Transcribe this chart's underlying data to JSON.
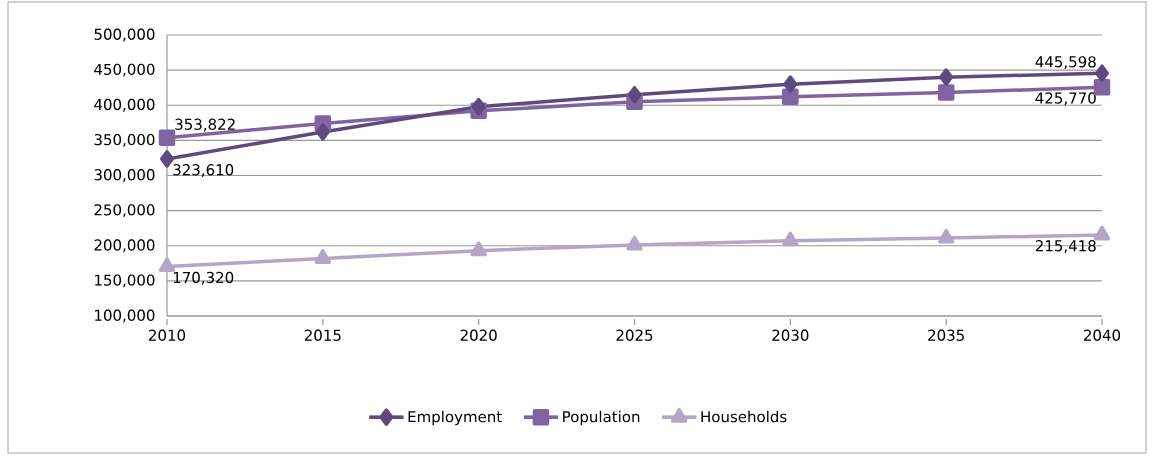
{
  "chart_data": {
    "type": "line",
    "categories": [
      "2010",
      "2015",
      "2020",
      "2025",
      "2030",
      "2035",
      "2040"
    ],
    "series": [
      {
        "name": "Employment",
        "color": "#5f4a80",
        "marker": "diamond",
        "values": [
          323610,
          362000,
          398000,
          415000,
          430000,
          440000,
          445598
        ],
        "value_labels": [
          "323,610",
          null,
          null,
          null,
          null,
          null,
          "445,598"
        ]
      },
      {
        "name": "Population",
        "color": "#8064a2",
        "marker": "square",
        "values": [
          353822,
          374000,
          392000,
          405000,
          412000,
          418000,
          425770
        ],
        "value_labels": [
          "353,822",
          null,
          null,
          null,
          null,
          null,
          "425,770"
        ]
      },
      {
        "name": "Households",
        "color": "#b3a6c8",
        "marker": "triangle",
        "values": [
          170320,
          182000,
          193000,
          201000,
          207000,
          211000,
          215418
        ],
        "value_labels": [
          "170,320",
          null,
          null,
          null,
          null,
          null,
          "215,418"
        ]
      }
    ],
    "ylim": [
      100000,
      500000
    ],
    "yticks": [
      {
        "value": 100000,
        "label": "100,000"
      },
      {
        "value": 150000,
        "label": "150,000"
      },
      {
        "value": 200000,
        "label": "200,000"
      },
      {
        "value": 250000,
        "label": "250,000"
      },
      {
        "value": 300000,
        "label": "300,000"
      },
      {
        "value": 350000,
        "label": "350,000"
      },
      {
        "value": 400000,
        "label": "400,000"
      },
      {
        "value": 450000,
        "label": "450,000"
      },
      {
        "value": 500000,
        "label": "500,000"
      }
    ],
    "grid": "y",
    "legend": "bottom"
  }
}
